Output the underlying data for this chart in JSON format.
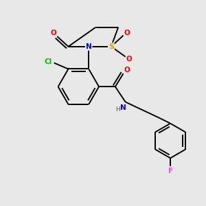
{
  "background_color": "#e8e8e8",
  "atom_colors": {
    "C": "#000000",
    "N": "#0000cc",
    "O": "#ff0000",
    "S": "#ccaa00",
    "Cl": "#00bb00",
    "F": "#ff44ff",
    "H": "#555555"
  },
  "bond_color": "#000000",
  "bond_width": 1.4,
  "figsize": [
    3.0,
    3.0
  ],
  "dpi": 100,
  "xlim": [
    0,
    10
  ],
  "ylim": [
    0,
    10
  ]
}
